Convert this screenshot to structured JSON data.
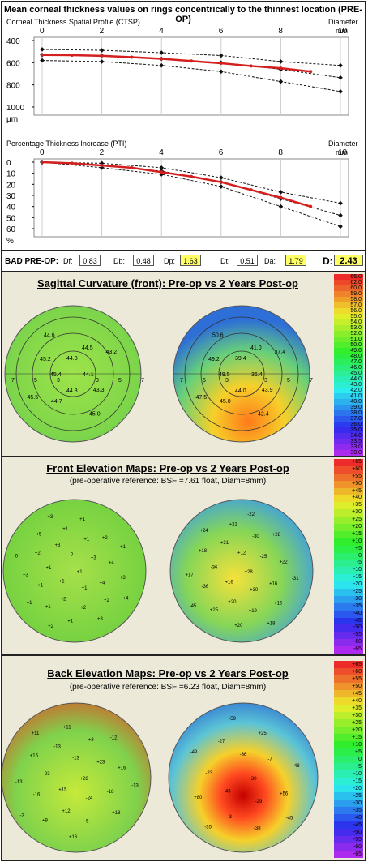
{
  "header": {
    "title": "Mean corneal thickness values on rings concentrically to the thinnest location (PRE-OP)"
  },
  "ctsp": {
    "title": "Corneal Thickness Spatial Profile (CTSP)",
    "xlabel": "Diameter",
    "xunit": "mm",
    "yunit": "μm",
    "xticks": [
      "0",
      "2",
      "4",
      "6",
      "8",
      "10"
    ],
    "yticks": [
      "400",
      "600",
      "800",
      "1000"
    ]
  },
  "pti": {
    "title": "Percentage Thickness Increase (PTI)",
    "xlabel": "Diameter",
    "xunit": "mm",
    "yunit": "%",
    "xticks": [
      "0",
      "2",
      "4",
      "6",
      "8",
      "10"
    ],
    "yticks": [
      "0",
      "10",
      "20",
      "30",
      "40",
      "50",
      "60"
    ]
  },
  "chart_data": [
    {
      "type": "line",
      "title": "Corneal Thickness Spatial Profile (CTSP)",
      "xlabel": "Diameter",
      "ylabel": "μm",
      "xlim": [
        0,
        10
      ],
      "ylim": [
        400,
        1000
      ],
      "series": [
        {
          "values_x": [
            0,
            2,
            4,
            6,
            8,
            10
          ],
          "values": [
            480,
            488,
            510,
            535,
            590,
            625
          ]
        },
        {
          "values_x": [
            0,
            2,
            4,
            6,
            8,
            10
          ],
          "values": [
            530,
            535,
            565,
            600,
            660,
            735
          ]
        },
        {
          "values_x": [
            0,
            2,
            4,
            6,
            8,
            10
          ],
          "values": [
            580,
            590,
            625,
            680,
            770,
            860
          ]
        },
        {
          "values_x": [
            0,
            1,
            2,
            3,
            4,
            5,
            6,
            7,
            8,
            9
          ],
          "values": [
            530,
            532,
            538,
            550,
            565,
            585,
            605,
            630,
            650,
            680
          ]
        }
      ]
    },
    {
      "type": "line",
      "title": "Percentage Thickness Increase (PTI)",
      "xlabel": "Diameter",
      "ylabel": "%",
      "xlim": [
        0,
        10
      ],
      "ylim": [
        0,
        60
      ],
      "series": [
        {
          "values_x": [
            0,
            2,
            4,
            6,
            8,
            10
          ],
          "values": [
            0,
            1,
            5,
            14,
            27,
            37
          ]
        },
        {
          "values_x": [
            0,
            2,
            4,
            6,
            8,
            10
          ],
          "values": [
            0,
            3,
            8,
            18,
            33,
            48
          ]
        },
        {
          "values_x": [
            0,
            2,
            4,
            6,
            8,
            10
          ],
          "values": [
            0,
            5,
            11,
            22,
            40,
            58
          ]
        },
        {
          "values_x": [
            0,
            1,
            2,
            3,
            4,
            5,
            6,
            7,
            8,
            9
          ],
          "values": [
            0,
            1,
            3,
            5,
            9,
            13,
            18,
            25,
            32,
            40
          ]
        }
      ]
    }
  ],
  "bad": {
    "label": "BAD PRE-OP:",
    "items": [
      {
        "key": "Df:",
        "val": "0.83",
        "hl": "#fff"
      },
      {
        "key": "Db:",
        "val": "0.48",
        "hl": "#fff"
      },
      {
        "key": "Dp:",
        "val": "1.63",
        "hl": "#ffff66"
      },
      {
        "key": "Dt:",
        "val": "0.51",
        "hl": "#fff"
      },
      {
        "key": "Da:",
        "val": "1.79",
        "hl": "#ffff66"
      },
      {
        "key": "D:",
        "val": "2.43",
        "hl": "#ffff66"
      }
    ]
  },
  "sagittal": {
    "title": "Sagittal Curvature (front):  Pre-op  vs  2 Years Post-op",
    "left": [
      "44.8",
      "44.5",
      "43.2",
      "44.1",
      "43.3",
      "45.0",
      "44.3",
      "44.7",
      "45.5",
      "45.4",
      "45.2",
      "44.6"
    ],
    "right": [
      "39.4",
      "41.0",
      "37.4",
      "36.4",
      "43.9",
      "42.4",
      "44.0",
      "45.0",
      "47.5",
      "49.5",
      "49.2",
      "50.6"
    ],
    "ring_labels": [
      "7",
      "5",
      "3",
      "3",
      "5",
      "7"
    ],
    "scale": [
      "66.0",
      "62.0",
      "60.0",
      "59.0",
      "58.0",
      "57.0",
      "56.0",
      "55.0",
      "54.0",
      "53.0",
      "52.0",
      "51.0",
      "50.0",
      "49.0",
      "48.0",
      "47.0",
      "46.0",
      "45.0",
      "44.0",
      "43.0",
      "42.0",
      "41.0",
      "40.0",
      "39.0",
      "38.0",
      "37.0",
      "36.0",
      "35.0",
      "34.0",
      "33.5",
      "33.0",
      "30.0"
    ]
  },
  "front": {
    "title": "Front Elevation Maps: Pre-op  vs  2 Years Post-op",
    "subtitle": "(pre-operative reference: BSF =7.61 float, Diam=8mm)",
    "left": [
      "+1",
      "+1",
      "0",
      "+1",
      "+1",
      "+3",
      "-2",
      "+3",
      "+4",
      "+1",
      "+1",
      "+2",
      "+2",
      "+4",
      "+1",
      "+1",
      "+2",
      "+3",
      "+2",
      "+1",
      "+5",
      "+3",
      "+1",
      "+1",
      "+3",
      "0",
      "+1",
      "+2",
      "+3",
      "+4"
    ],
    "right": [
      "+28",
      "+16",
      "+12",
      "+30",
      "-36",
      "-25",
      "+20",
      "+31",
      "+16",
      "-36",
      "-30",
      "+19",
      "+18",
      "+22",
      "+25",
      "+21",
      "+16",
      "+17",
      "+28",
      "+20",
      "+24",
      "-31",
      "-45",
      "-22",
      "+18"
    ],
    "scale": [
      "+65",
      "+60",
      "+55",
      "+50",
      "+45",
      "+40",
      "+35",
      "+30",
      "+25",
      "+20",
      "+15",
      "+10",
      "+5",
      "0",
      "-5",
      "-10",
      "-15",
      "-20",
      "-25",
      "-30",
      "-35",
      "-40",
      "-45",
      "-50",
      "-55",
      "-60",
      "-65"
    ]
  },
  "back": {
    "title": "Back Elevation Maps: Pre-op  vs  2 Years Post-op",
    "subtitle": "(pre-operative reference: BSF =6.23 float, Diam=8mm)",
    "left": [
      "+28",
      "+15",
      "-13",
      "-24",
      "-23",
      "+23",
      "+12",
      "-13",
      "-18",
      "-16",
      "+8",
      "-5",
      "+16",
      "+16",
      "+9",
      "+11",
      "+18",
      "-13",
      "-12",
      "+16",
      "+11",
      "-13",
      "-3"
    ],
    "right": [
      "+30",
      "-43",
      "-36",
      "-29",
      "-23",
      "-7",
      "-3",
      "-27",
      "+56",
      "+80",
      "+25",
      "-38",
      "-49",
      "-48",
      "-35",
      "-59",
      "-45"
    ],
    "scale": [
      "+65",
      "+60",
      "+55",
      "+50",
      "+45",
      "+40",
      "+35",
      "+30",
      "+25",
      "+20",
      "+15",
      "+10",
      "+5",
      "0",
      "-5",
      "-10",
      "-15",
      "-20",
      "-25",
      "-30",
      "-35",
      "-40",
      "-45",
      "-50",
      "-55",
      "-60",
      "-65"
    ]
  },
  "colors": {
    "profile_red": "#d41f1f",
    "hl_yellow": "#ffff66"
  }
}
